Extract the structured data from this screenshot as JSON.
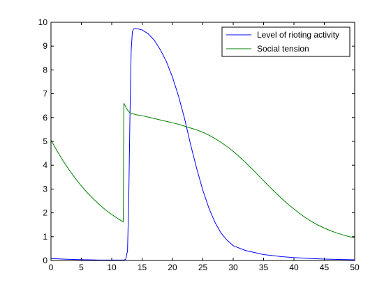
{
  "chart_data": {
    "type": "line",
    "title": "",
    "xlabel": "",
    "ylabel": "",
    "xlim": [
      0,
      50
    ],
    "ylim": [
      0,
      10
    ],
    "x_ticks": [
      0,
      5,
      10,
      15,
      20,
      25,
      30,
      35,
      40,
      45,
      50
    ],
    "y_ticks": [
      0,
      1,
      2,
      3,
      4,
      5,
      6,
      7,
      8,
      9,
      10
    ],
    "grid": false,
    "legend_position": "top-right",
    "series": [
      {
        "name": "Level of rioting activity",
        "color": "#0000ff",
        "points": [
          [
            0,
            0.08
          ],
          [
            2,
            0.06
          ],
          [
            4,
            0.04
          ],
          [
            6,
            0.03
          ],
          [
            8,
            0.02
          ],
          [
            10,
            0.02
          ],
          [
            11,
            0.02
          ],
          [
            12,
            0.02
          ],
          [
            12.3,
            0.05
          ],
          [
            12.6,
            0.4
          ],
          [
            12.8,
            2.5
          ],
          [
            13.0,
            6.0
          ],
          [
            13.2,
            8.8
          ],
          [
            13.4,
            9.6
          ],
          [
            13.6,
            9.72
          ],
          [
            14,
            9.74
          ],
          [
            15,
            9.68
          ],
          [
            16,
            9.52
          ],
          [
            17,
            9.25
          ],
          [
            18,
            8.85
          ],
          [
            19,
            8.35
          ],
          [
            20,
            7.7
          ],
          [
            21,
            6.9
          ],
          [
            22,
            5.95
          ],
          [
            23,
            4.85
          ],
          [
            24,
            3.85
          ],
          [
            25,
            2.95
          ],
          [
            26,
            2.2
          ],
          [
            27,
            1.6
          ],
          [
            28,
            1.15
          ],
          [
            29,
            0.85
          ],
          [
            30,
            0.62
          ],
          [
            32,
            0.42
          ],
          [
            35,
            0.25
          ],
          [
            38,
            0.16
          ],
          [
            40,
            0.12
          ],
          [
            43,
            0.08
          ],
          [
            45,
            0.06
          ],
          [
            48,
            0.04
          ],
          [
            50,
            0.03
          ]
        ]
      },
      {
        "name": "Social tension",
        "color": "#008000",
        "points": [
          [
            0,
            5.05
          ],
          [
            1,
            4.6
          ],
          [
            2,
            4.18
          ],
          [
            3,
            3.8
          ],
          [
            4,
            3.45
          ],
          [
            5,
            3.13
          ],
          [
            6,
            2.84
          ],
          [
            7,
            2.58
          ],
          [
            8,
            2.34
          ],
          [
            9,
            2.12
          ],
          [
            10,
            1.93
          ],
          [
            11,
            1.76
          ],
          [
            11.9,
            1.62
          ],
          [
            12.0,
            6.6
          ],
          [
            12.2,
            6.5
          ],
          [
            12.5,
            6.35
          ],
          [
            13,
            6.2
          ],
          [
            14,
            6.12
          ],
          [
            15,
            6.08
          ],
          [
            16,
            6.02
          ],
          [
            17,
            5.96
          ],
          [
            18,
            5.9
          ],
          [
            19,
            5.84
          ],
          [
            20,
            5.78
          ],
          [
            21,
            5.72
          ],
          [
            22,
            5.64
          ],
          [
            23,
            5.56
          ],
          [
            24,
            5.48
          ],
          [
            25,
            5.38
          ],
          [
            26,
            5.26
          ],
          [
            27,
            5.12
          ],
          [
            28,
            4.96
          ],
          [
            29,
            4.78
          ],
          [
            30,
            4.58
          ],
          [
            31,
            4.36
          ],
          [
            32,
            4.12
          ],
          [
            33,
            3.87
          ],
          [
            34,
            3.61
          ],
          [
            35,
            3.35
          ],
          [
            36,
            3.09
          ],
          [
            37,
            2.84
          ],
          [
            38,
            2.6
          ],
          [
            39,
            2.37
          ],
          [
            40,
            2.16
          ],
          [
            41,
            1.96
          ],
          [
            42,
            1.78
          ],
          [
            43,
            1.62
          ],
          [
            44,
            1.48
          ],
          [
            45,
            1.36
          ],
          [
            46,
            1.25
          ],
          [
            47,
            1.16
          ],
          [
            48,
            1.08
          ],
          [
            49,
            1.01
          ],
          [
            50,
            0.95
          ]
        ]
      }
    ]
  }
}
